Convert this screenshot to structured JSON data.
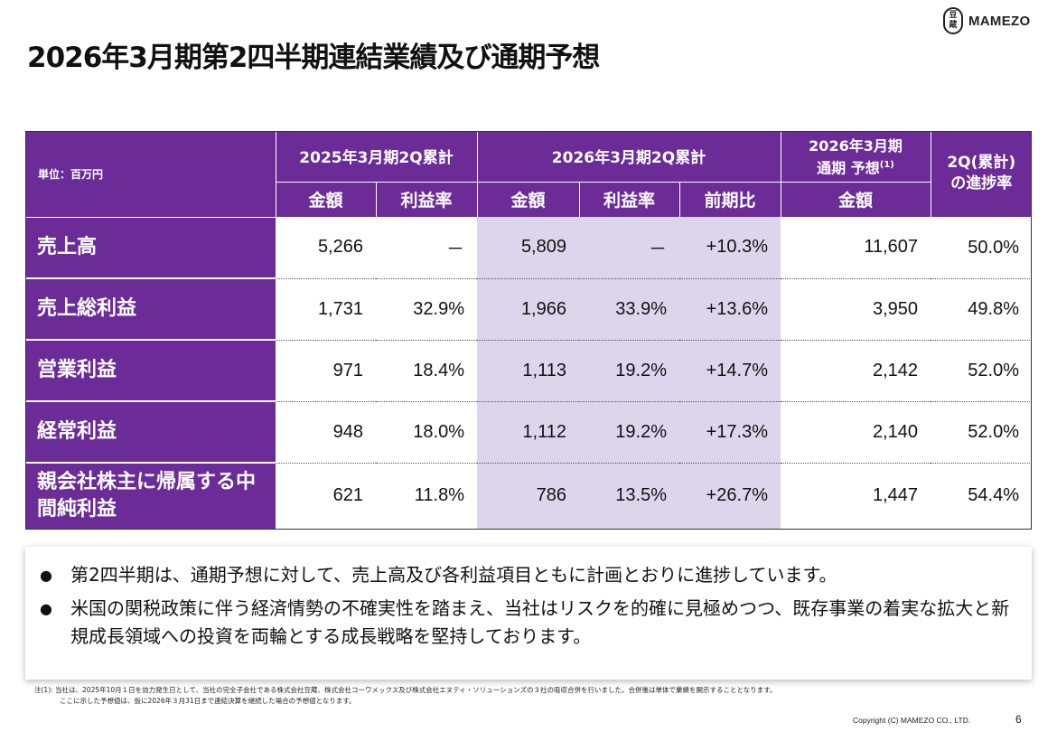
{
  "title": "2026年3月期第2四半期連結業績及び通期予想",
  "logo": {
    "mark_top": "豆",
    "mark_bottom": "蔵",
    "text": "MAMEZO"
  },
  "table": {
    "unit_label": "単位：百万円",
    "group_headers": {
      "fy2025": "2025年3月期2Q累計",
      "fy2026": "2026年3月期2Q累計",
      "forecast_line1": "2026年3月期",
      "forecast_line2": "通期 予想",
      "forecast_note": "(1)",
      "progress_line1": "2Q(累計)",
      "progress_line2": "の進捗率"
    },
    "sub_headers": {
      "amount_2025": "金額",
      "margin_2025": "利益率",
      "amount_2026": "金額",
      "margin_2026": "利益率",
      "yoy": "前期比",
      "forecast_amount": "金額"
    },
    "rows": [
      {
        "label": "売上高",
        "amount_2025": "5,266",
        "margin_2025": "－",
        "amount_2026": "5,809",
        "margin_2026": "－",
        "yoy": "+10.3%",
        "forecast": "11,607",
        "progress": "50.0%"
      },
      {
        "label": "売上総利益",
        "amount_2025": "1,731",
        "margin_2025": "32.9%",
        "amount_2026": "1,966",
        "margin_2026": "33.9%",
        "yoy": "+13.6%",
        "forecast": "3,950",
        "progress": "49.8%"
      },
      {
        "label": "営業利益",
        "amount_2025": "971",
        "margin_2025": "18.4%",
        "amount_2026": "1,113",
        "margin_2026": "19.2%",
        "yoy": "+14.7%",
        "forecast": "2,142",
        "progress": "52.0%"
      },
      {
        "label": "経常利益",
        "amount_2025": "948",
        "margin_2025": "18.0%",
        "amount_2026": "1,112",
        "margin_2026": "19.2%",
        "yoy": "+17.3%",
        "forecast": "2,140",
        "progress": "52.0%"
      },
      {
        "label": "親会社株主に帰属する中間純利益",
        "amount_2025": "621",
        "margin_2025": "11.8%",
        "amount_2026": "786",
        "margin_2026": "13.5%",
        "yoy": "+26.7%",
        "forecast": "1,447",
        "progress": "54.4%"
      }
    ]
  },
  "bullets": [
    "第2四半期は、通期予想に対して、売上高及び各利益項目ともに計画とおりに進捗しています。",
    "米国の関税政策に伴う経済情勢の不確実性を踏まえ、当社はリスクを的確に見極めつつ、既存事業の着実な拡大と新規成長領域への投資を両輪とする成長戦略を堅持しております。"
  ],
  "bullet_symbol": "●",
  "footnote": {
    "line1": "注(1): 当社は、2025年10月１日を効力発生日として、当社の完全子会社である株式会社豆蔵、株式会社コーワメックス及び株式会社エヌティ・ソリューションズの３社の吸収合併を行いました。合併後は単体で業績を開示することとなります。",
    "line2": "ここに示した予想値は、仮に2026年３月31日まで連結決算を継続した場合の予想値となります。"
  },
  "copyright": "Copyright (C) MAMEZO CO., LTD.",
  "page_number": "6",
  "colors": {
    "header_purple": "#6b2c98",
    "highlight_lavender": "#ddd5ec"
  }
}
